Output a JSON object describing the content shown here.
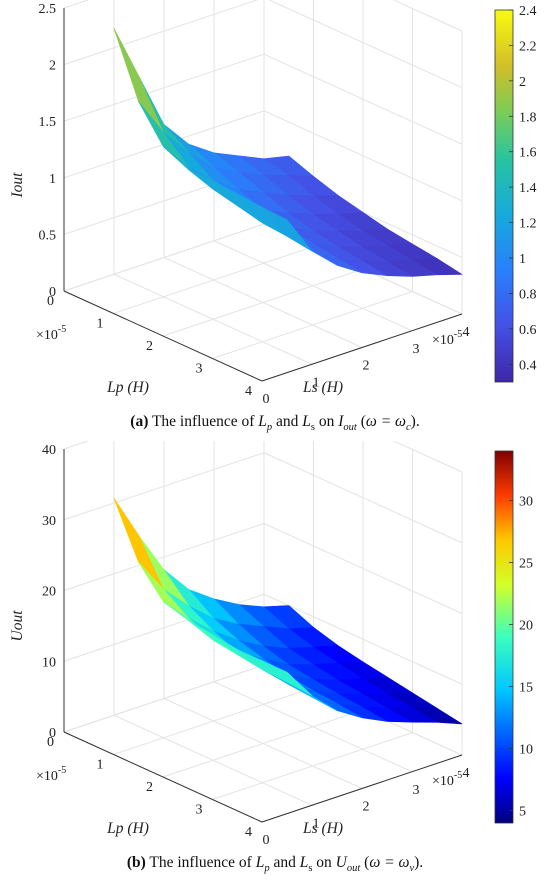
{
  "chart_data": [
    {
      "type": "surface",
      "caption": {
        "prefix": "(a)",
        "text_1": " The influence of ",
        "sym_1": "L",
        "sub_1": "p",
        "text_2": " and ",
        "sym_2": "L",
        "sub_2": "s",
        "text_3": " on ",
        "sym_3": "I",
        "sub_3": "out",
        "text_4": " (",
        "omega": "ω = ω",
        "sub_4": "c",
        "text_5": ")."
      },
      "xlabel": "Ls (H)",
      "ylabel": "Lp (H)",
      "zlabel": "Iout",
      "x_ticks": [
        "0",
        "1",
        "2",
        "3",
        "4"
      ],
      "y_ticks": [
        "0",
        "1",
        "2",
        "3",
        "4"
      ],
      "z_ticks": [
        "0",
        "0.5",
        "1",
        "1.5",
        "2",
        "2.5"
      ],
      "x_exponent": "×10",
      "x_exp_power": "-5",
      "y_exponent": "×10",
      "y_exp_power": "-5",
      "xlim": [
        0,
        4
      ],
      "ylim": [
        0,
        4
      ],
      "zlim": [
        0,
        2.5
      ],
      "colormap": "parula",
      "clim": [
        0.3,
        2.4
      ],
      "colorbar_ticks": [
        "0.4",
        "0.6",
        "0.8",
        "1",
        "1.2",
        "1.4",
        "1.6",
        "1.8",
        "2",
        "2.2",
        "2.4"
      ],
      "colorbar_values": [
        0.4,
        0.6,
        0.8,
        1.0,
        1.2,
        1.4,
        1.6,
        1.8,
        2.0,
        2.2,
        2.4
      ],
      "grid": true,
      "x": [
        0.5,
        1.0,
        1.5,
        2.0,
        2.5,
        3.0,
        3.5,
        4.0
      ],
      "y": [
        0.5,
        1.0,
        1.5,
        2.0,
        2.5,
        3.0,
        3.5,
        4.0
      ],
      "z": [
        [
          2.35,
          1.85,
          1.35,
          1.1,
          0.95,
          0.85,
          0.75,
          0.7
        ],
        [
          1.8,
          1.45,
          1.2,
          1.0,
          0.88,
          0.78,
          0.7,
          0.62
        ],
        [
          1.5,
          1.25,
          1.05,
          0.9,
          0.8,
          0.7,
          0.62,
          0.55
        ],
        [
          1.4,
          1.15,
          0.95,
          0.82,
          0.72,
          0.63,
          0.56,
          0.5
        ],
        [
          1.4,
          1.1,
          0.9,
          0.76,
          0.66,
          0.58,
          0.51,
          0.45
        ],
        [
          1.38,
          1.05,
          0.86,
          0.72,
          0.62,
          0.54,
          0.48,
          0.42
        ],
        [
          1.36,
          1.03,
          0.83,
          0.69,
          0.59,
          0.51,
          0.45,
          0.39
        ],
        [
          1.35,
          1.0,
          0.8,
          0.66,
          0.56,
          0.48,
          0.42,
          0.35
        ]
      ]
    },
    {
      "type": "surface",
      "caption": {
        "prefix": "(b)",
        "text_1": " The influence of ",
        "sym_1": "L",
        "sub_1": "p",
        "text_2": " and ",
        "sym_2": "L",
        "sub_2": "s",
        "text_3": " on ",
        "sym_3": "U",
        "sub_3": "out",
        "text_4": " (",
        "omega": "ω = ω",
        "sub_4": "v",
        "text_5": ")."
      },
      "xlabel": "Ls (H)",
      "ylabel": "Lp (H)",
      "zlabel": "Uout",
      "x_ticks": [
        "0",
        "1",
        "2",
        "3",
        "4"
      ],
      "y_ticks": [
        "0",
        "1",
        "2",
        "3",
        "4"
      ],
      "z_ticks": [
        "0",
        "10",
        "20",
        "30",
        "40"
      ],
      "x_exponent": "×10",
      "x_exp_power": "-5",
      "y_exponent": "×10",
      "y_exp_power": "-5",
      "xlim": [
        0,
        4
      ],
      "ylim": [
        0,
        4
      ],
      "zlim": [
        0,
        40
      ],
      "colormap": "jet",
      "clim": [
        4,
        34
      ],
      "colorbar_ticks": [
        "5",
        "10",
        "15",
        "20",
        "25",
        "30"
      ],
      "colorbar_values": [
        5,
        10,
        15,
        20,
        25,
        30
      ],
      "grid": true,
      "x": [
        0.5,
        1.0,
        1.5,
        2.0,
        2.5,
        3.0,
        3.5,
        4.0
      ],
      "y": [
        0.5,
        1.0,
        1.5,
        2.0,
        2.5,
        3.0,
        3.5,
        4.0
      ],
      "z": [
        [
          33.5,
          27.0,
          21.0,
          17.0,
          14.5,
          12.5,
          11.0,
          10.0
        ],
        [
          26.0,
          21.0,
          17.5,
          14.5,
          12.5,
          11.0,
          9.5,
          8.5
        ],
        [
          22.0,
          18.5,
          15.5,
          13.0,
          11.0,
          9.5,
          8.5,
          7.5
        ],
        [
          21.0,
          17.0,
          14.0,
          12.0,
          10.0,
          8.8,
          7.8,
          6.8
        ],
        [
          20.5,
          16.5,
          13.3,
          11.2,
          9.5,
          8.2,
          7.2,
          6.2
        ],
        [
          20.0,
          16.0,
          12.8,
          10.7,
          9.0,
          7.8,
          6.7,
          5.6
        ],
        [
          20.0,
          15.8,
          12.5,
          10.4,
          8.7,
          7.4,
          6.3,
          5.0
        ],
        [
          20.0,
          15.5,
          12.2,
          10.0,
          8.3,
          7.0,
          5.8,
          4.4
        ]
      ]
    }
  ]
}
